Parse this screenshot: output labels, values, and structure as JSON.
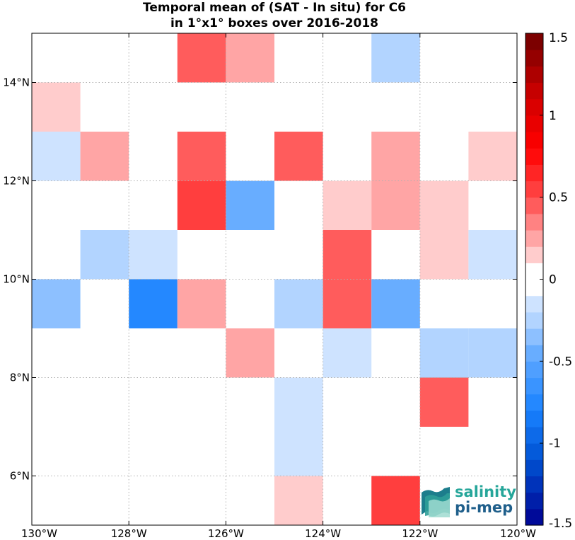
{
  "chart_data": {
    "type": "heatmap",
    "title": "Temporal mean of (SAT - In situ) for C6",
    "subtitle": "in 1°x1° boxes over 2016-2018",
    "xlim": [
      -130,
      -120
    ],
    "ylim": [
      5,
      15
    ],
    "x_ticks": [
      {
        "value": -130,
        "label": "130°W"
      },
      {
        "value": -128,
        "label": "128°W"
      },
      {
        "value": -126,
        "label": "126°W"
      },
      {
        "value": -124,
        "label": "124°W"
      },
      {
        "value": -122,
        "label": "122°W"
      },
      {
        "value": -120,
        "label": "120°W"
      }
    ],
    "y_ticks": [
      {
        "value": 6,
        "label": "6°N"
      },
      {
        "value": 8,
        "label": "8°N"
      },
      {
        "value": 10,
        "label": "10°N"
      },
      {
        "value": 12,
        "label": "12°N"
      },
      {
        "value": 14,
        "label": "14°N"
      }
    ],
    "grid": true,
    "colorbar": {
      "range": [
        -1.5,
        1.5
      ],
      "step": 0.1,
      "ticks": [
        {
          "value": 1.5,
          "label": "1.5"
        },
        {
          "value": 1.0,
          "label": "1"
        },
        {
          "value": 0.5,
          "label": "0.5"
        },
        {
          "value": 0.0,
          "label": "0"
        },
        {
          "value": -0.5,
          "label": "-0.5"
        },
        {
          "value": -1.0,
          "label": "-1"
        },
        {
          "value": -1.5,
          "label": "-1.5"
        }
      ]
    },
    "cells": [
      {
        "lon": -127,
        "lat": 14,
        "value": 0.45
      },
      {
        "lon": -126,
        "lat": 14,
        "value": 0.25
      },
      {
        "lon": -123,
        "lat": 14,
        "value": -0.25
      },
      {
        "lon": -130,
        "lat": 13,
        "value": 0.15
      },
      {
        "lon": -130,
        "lat": 12,
        "value": -0.15
      },
      {
        "lon": -129,
        "lat": 12,
        "value": 0.25
      },
      {
        "lon": -127,
        "lat": 12,
        "value": 0.45
      },
      {
        "lon": -125,
        "lat": 12,
        "value": 0.45
      },
      {
        "lon": -123,
        "lat": 12,
        "value": 0.25
      },
      {
        "lon": -121,
        "lat": 12,
        "value": 0.15
      },
      {
        "lon": -127,
        "lat": 11,
        "value": 0.55
      },
      {
        "lon": -126,
        "lat": 11,
        "value": -0.45
      },
      {
        "lon": -124,
        "lat": 11,
        "value": 0.15
      },
      {
        "lon": -123,
        "lat": 11,
        "value": 0.25
      },
      {
        "lon": -122,
        "lat": 11,
        "value": 0.15
      },
      {
        "lon": -129,
        "lat": 10,
        "value": -0.25
      },
      {
        "lon": -128,
        "lat": 10,
        "value": -0.15
      },
      {
        "lon": -124,
        "lat": 10,
        "value": 0.45
      },
      {
        "lon": -122,
        "lat": 10,
        "value": 0.15
      },
      {
        "lon": -121,
        "lat": 10,
        "value": -0.15
      },
      {
        "lon": -130,
        "lat": 9,
        "value": -0.35
      },
      {
        "lon": -128,
        "lat": 9,
        "value": -0.75
      },
      {
        "lon": -127,
        "lat": 9,
        "value": 0.25
      },
      {
        "lon": -125,
        "lat": 9,
        "value": -0.25
      },
      {
        "lon": -124,
        "lat": 9,
        "value": 0.45
      },
      {
        "lon": -123,
        "lat": 9,
        "value": -0.45
      },
      {
        "lon": -126,
        "lat": 8,
        "value": 0.25
      },
      {
        "lon": -124,
        "lat": 8,
        "value": -0.15
      },
      {
        "lon": -122,
        "lat": 8,
        "value": -0.25
      },
      {
        "lon": -121,
        "lat": 8,
        "value": -0.25
      },
      {
        "lon": -125,
        "lat": 7,
        "value": -0.15
      },
      {
        "lon": -122,
        "lat": 7,
        "value": 0.45
      },
      {
        "lon": -125,
        "lat": 6,
        "value": -0.15
      },
      {
        "lon": -125,
        "lat": 5,
        "value": 0.15
      },
      {
        "lon": -123,
        "lat": 5,
        "value": 0.55
      }
    ]
  },
  "logo": {
    "line1": "salinity",
    "line2": "pi-mep",
    "color_top": "#26a69a",
    "color_bottom": "#1f5f8b"
  }
}
